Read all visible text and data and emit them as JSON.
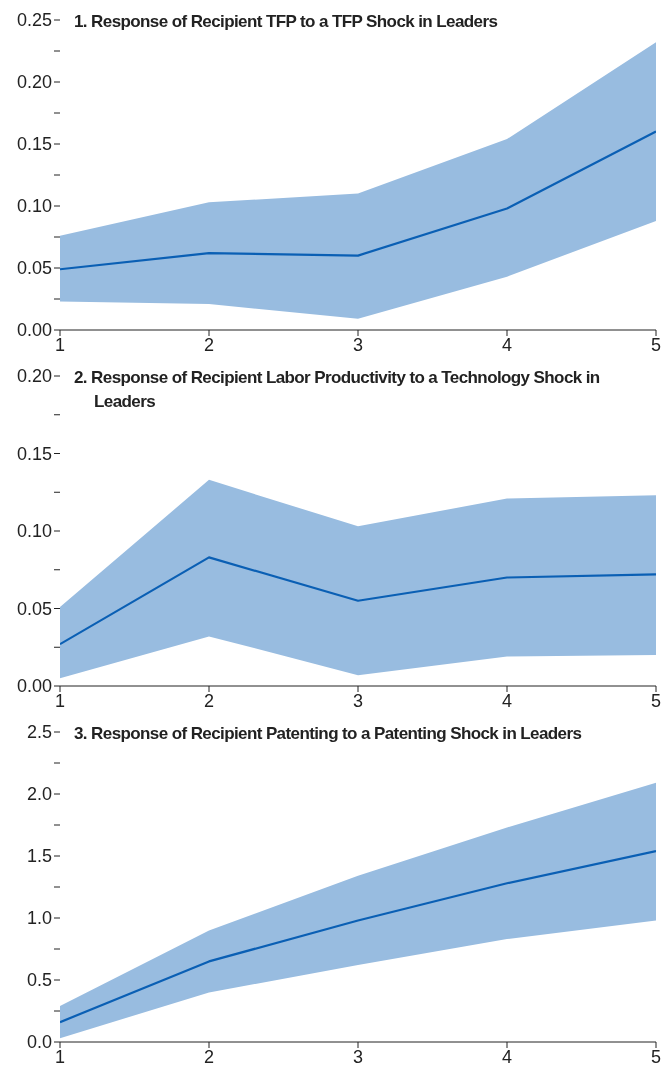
{
  "chart_data": [
    {
      "type": "line",
      "title": "1. Response of Recipient TFP to a TFP Shock in Leaders",
      "x": [
        1,
        2,
        3,
        4,
        5
      ],
      "xlim": [
        1,
        5
      ],
      "xticks": [
        1,
        2,
        3,
        4,
        5
      ],
      "ylim": [
        0,
        0.25
      ],
      "yticks": [
        {
          "value": 0,
          "label": "0.00"
        },
        {
          "value": 0.025,
          "label": null
        },
        {
          "value": 0.05,
          "label": "0.05"
        },
        {
          "value": 0.075,
          "label": null
        },
        {
          "value": 0.1,
          "label": "0.10"
        },
        {
          "value": 0.125,
          "label": null
        },
        {
          "value": 0.15,
          "label": "0.15"
        },
        {
          "value": 0.175,
          "label": null
        },
        {
          "value": 0.2,
          "label": "0.20"
        },
        {
          "value": 0.225,
          "label": null
        },
        {
          "value": 0.25,
          "label": "0.25"
        }
      ],
      "grid": false,
      "legend": false,
      "series": [
        {
          "color": "#0a5fb4",
          "values": [
            0.049,
            0.062,
            0.06,
            0.098,
            0.16
          ],
          "lower": [
            0.023,
            0.021,
            0.009,
            0.043,
            0.088
          ],
          "upper": [
            0.076,
            0.103,
            0.11,
            0.154,
            0.232
          ]
        }
      ]
    },
    {
      "type": "line",
      "title": "2. Response of Recipient Labor Productivity to a Technology Shock in Leaders",
      "x": [
        1,
        2,
        3,
        4,
        5
      ],
      "xlim": [
        1,
        5
      ],
      "xticks": [
        1,
        2,
        3,
        4,
        5
      ],
      "ylim": [
        0,
        0.2
      ],
      "yticks": [
        {
          "value": 0,
          "label": "0.00"
        },
        {
          "value": 0.025,
          "label": null
        },
        {
          "value": 0.05,
          "label": "0.05"
        },
        {
          "value": 0.075,
          "label": null
        },
        {
          "value": 0.1,
          "label": "0.10"
        },
        {
          "value": 0.125,
          "label": null
        },
        {
          "value": 0.15,
          "label": "0.15"
        },
        {
          "value": 0.175,
          "label": null
        },
        {
          "value": 0.2,
          "label": "0.20"
        }
      ],
      "grid": false,
      "legend": false,
      "series": [
        {
          "color": "#0a5fb4",
          "values": [
            0.027,
            0.083,
            0.055,
            0.07,
            0.072
          ],
          "lower": [
            0.005,
            0.032,
            0.007,
            0.019,
            0.02
          ],
          "upper": [
            0.051,
            0.133,
            0.103,
            0.121,
            0.123
          ]
        }
      ]
    },
    {
      "type": "line",
      "title": "3. Response of Recipient Patenting to a Patenting Shock in Leaders",
      "x": [
        1,
        2,
        3,
        4,
        5
      ],
      "xlim": [
        1,
        5
      ],
      "xticks": [
        1,
        2,
        3,
        4,
        5
      ],
      "ylim": [
        0,
        2.5
      ],
      "yticks": [
        {
          "value": 0,
          "label": "0.0"
        },
        {
          "value": 0.25,
          "label": null
        },
        {
          "value": 0.5,
          "label": "0.5"
        },
        {
          "value": 0.75,
          "label": null
        },
        {
          "value": 1,
          "label": "1.0"
        },
        {
          "value": 1.25,
          "label": null
        },
        {
          "value": 1.5,
          "label": "1.5"
        },
        {
          "value": 1.75,
          "label": null
        },
        {
          "value": 2,
          "label": "2.0"
        },
        {
          "value": 2.25,
          "label": null
        },
        {
          "value": 2.5,
          "label": "2.5"
        }
      ],
      "grid": false,
      "legend": false,
      "series": [
        {
          "color": "#0a5fb4",
          "values": [
            0.16,
            0.65,
            0.98,
            1.28,
            1.54
          ],
          "lower": [
            0.03,
            0.4,
            0.62,
            0.83,
            0.98
          ],
          "upper": [
            0.29,
            0.9,
            1.34,
            1.73,
            2.09
          ]
        }
      ]
    }
  ]
}
